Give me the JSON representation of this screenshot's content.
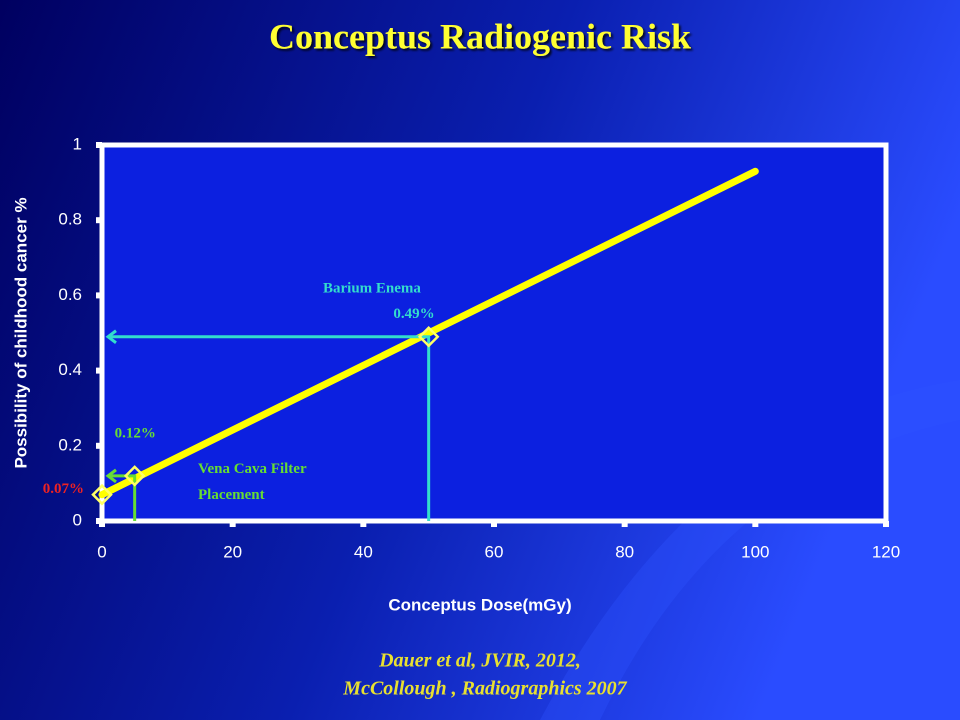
{
  "chart_data": {
    "type": "line",
    "title": "Conceptus Radiogenic Risk",
    "x_label": "Conceptus Dose(mGy)",
    "y_label": "Possibility of childhood cancer %",
    "xlim": [
      0,
      120
    ],
    "ylim": [
      0,
      1
    ],
    "xticks": [
      0,
      20,
      40,
      60,
      80,
      100,
      120
    ],
    "yticks": [
      0,
      0.2,
      0.4,
      0.6,
      0.8,
      1
    ],
    "series": [
      {
        "color": "#ffff00",
        "x": [
          0,
          100
        ],
        "values": [
          0.07,
          0.93
        ]
      },
      {
        "color": "#ffff66",
        "marker": "diamond",
        "x": [
          0,
          5,
          50
        ],
        "values": [
          0.07,
          0.12,
          0.49
        ],
        "value_labels": [
          "0.07%",
          "0.12%",
          "0.49%"
        ],
        "label_colors": [
          "#ee2222",
          "#66dd33",
          "#33ddcc"
        ]
      }
    ],
    "annotations": [
      "Vena Cava Filter Placement",
      "Barium Enema"
    ],
    "source": [
      "Dauer et al, JVIR, 2012,",
      "McCollough , Radiographics 2007"
    ]
  }
}
